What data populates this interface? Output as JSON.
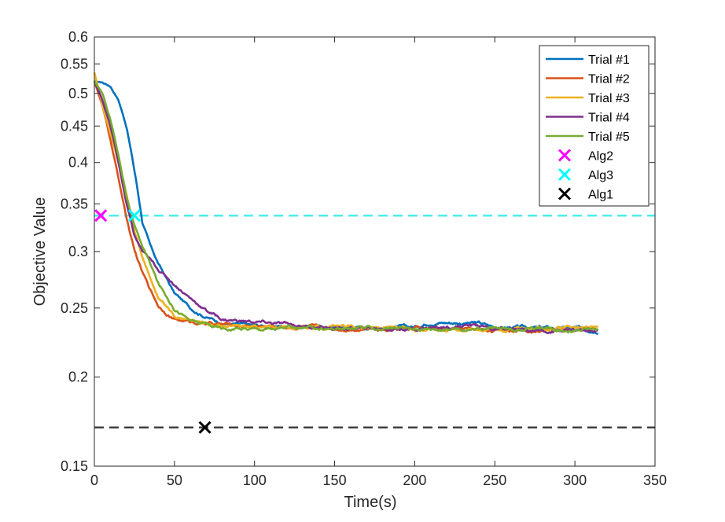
{
  "chart_data": {
    "type": "line",
    "title": "",
    "xlabel": "Time(s)",
    "ylabel": "Objective Value",
    "xlim": [
      0,
      350
    ],
    "ylim": [
      0.15,
      0.6
    ],
    "yscale": "log",
    "x_ticks": [
      0,
      50,
      100,
      150,
      200,
      250,
      300,
      350
    ],
    "x_tick_labels": [
      "0",
      "50",
      "100",
      "150",
      "200",
      "250",
      "300",
      "350"
    ],
    "y_ticks": [
      0.15,
      0.2,
      0.25,
      0.3,
      0.35,
      0.4,
      0.45,
      0.5,
      0.55,
      0.6
    ],
    "y_tick_labels": [
      "0.15",
      "0.2",
      "0.25",
      "0.3",
      "0.35",
      "0.4",
      "0.45",
      "0.5",
      "0.55",
      "0.6"
    ],
    "grid": false,
    "legend_position": "top-right",
    "series": [
      {
        "name": "Trial #1",
        "color": "#0072BD",
        "x": [
          0,
          5,
          10,
          15,
          20,
          25,
          30,
          35,
          40,
          50,
          60,
          70,
          80,
          100,
          150,
          200,
          210,
          240,
          250,
          300,
          315
        ],
        "y": [
          0.52,
          0.518,
          0.512,
          0.49,
          0.45,
          0.39,
          0.33,
          0.305,
          0.288,
          0.262,
          0.25,
          0.243,
          0.238,
          0.236,
          0.235,
          0.235,
          0.239,
          0.238,
          0.235,
          0.234,
          0.233
        ]
      },
      {
        "name": "Trial #2",
        "color": "#D95319",
        "x": [
          0,
          5,
          10,
          15,
          20,
          25,
          30,
          35,
          40,
          50,
          60,
          80,
          100,
          150,
          200,
          250,
          300,
          315
        ],
        "y": [
          0.52,
          0.48,
          0.43,
          0.38,
          0.335,
          0.3,
          0.28,
          0.265,
          0.252,
          0.241,
          0.239,
          0.237,
          0.236,
          0.234,
          0.234,
          0.233,
          0.233,
          0.233
        ]
      },
      {
        "name": "Trial #3",
        "color": "#EDB120",
        "x": [
          0,
          5,
          10,
          15,
          20,
          25,
          30,
          35,
          40,
          50,
          60,
          80,
          100,
          150,
          200,
          250,
          300,
          315
        ],
        "y": [
          0.535,
          0.48,
          0.44,
          0.4,
          0.36,
          0.32,
          0.295,
          0.275,
          0.258,
          0.245,
          0.24,
          0.236,
          0.235,
          0.235,
          0.234,
          0.234,
          0.234,
          0.235
        ]
      },
      {
        "name": "Trial #4",
        "color": "#7E2F8E",
        "x": [
          0,
          5,
          10,
          15,
          20,
          25,
          30,
          40,
          50,
          60,
          70,
          80,
          100,
          110,
          150,
          200,
          240,
          250,
          300,
          315
        ],
        "y": [
          0.52,
          0.49,
          0.45,
          0.4,
          0.35,
          0.315,
          0.3,
          0.283,
          0.27,
          0.258,
          0.248,
          0.241,
          0.239,
          0.238,
          0.234,
          0.234,
          0.237,
          0.233,
          0.232,
          0.232
        ]
      },
      {
        "name": "Trial #5",
        "color": "#77AC30",
        "x": [
          0,
          5,
          10,
          15,
          20,
          25,
          30,
          35,
          40,
          50,
          60,
          80,
          100,
          150,
          200,
          250,
          300,
          315
        ],
        "y": [
          0.52,
          0.5,
          0.46,
          0.41,
          0.36,
          0.325,
          0.305,
          0.288,
          0.27,
          0.25,
          0.24,
          0.234,
          0.234,
          0.234,
          0.234,
          0.234,
          0.233,
          0.234
        ]
      }
    ],
    "markers": [
      {
        "name": "Alg2",
        "x": 4,
        "y": 0.337,
        "color": "#FF00FF"
      },
      {
        "name": "Alg3",
        "x": 25,
        "y": 0.337,
        "color": "#00FFFF"
      },
      {
        "name": "Alg1",
        "x": 69,
        "y": 0.17,
        "color": "#000000"
      }
    ],
    "reference_lines": [
      {
        "name": "Alg3",
        "y": 0.337,
        "color": "#4DEEEA"
      },
      {
        "name": "Alg1",
        "y": 0.17,
        "color": "#404040"
      }
    ]
  }
}
